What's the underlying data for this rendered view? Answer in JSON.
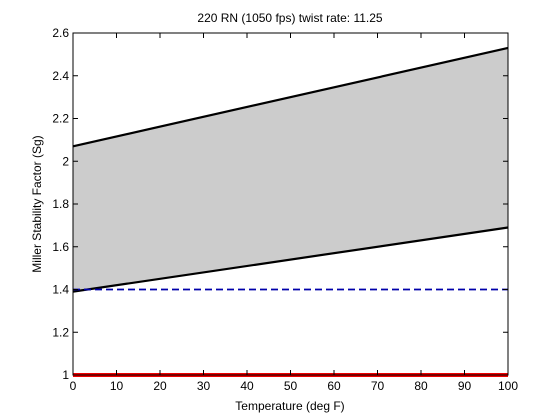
{
  "chart_data": {
    "type": "area",
    "title": "220 RN (1050 fps) twist rate: 11.25",
    "xlabel": "Temperature (deg F)",
    "ylabel": "Miller Stability Factor (Sg)",
    "xlim": [
      0,
      100
    ],
    "ylim": [
      1,
      2.6
    ],
    "x_ticks": [
      0,
      10,
      20,
      30,
      40,
      50,
      60,
      70,
      80,
      90,
      100
    ],
    "y_ticks": [
      1,
      1.2,
      1.4,
      1.6,
      1.8,
      2,
      2.2,
      2.4,
      2.6
    ],
    "y_tick_labels": [
      "1",
      "1.2",
      "1.4",
      "1.6",
      "1.8",
      "2",
      "2.2",
      "2.4",
      "2.6"
    ],
    "grid": false,
    "legend": "none",
    "band": {
      "x": [
        0,
        100
      ],
      "upper": [
        2.07,
        2.53
      ],
      "lower": [
        1.39,
        1.69
      ],
      "fill_color": "#cccccc",
      "edge_color": "#000000"
    },
    "reference_lines": [
      {
        "y": 1.4,
        "color": "#0000aa",
        "style": "dashed"
      },
      {
        "y": 1.0,
        "color": "#ee0000",
        "style": "solid"
      }
    ]
  }
}
